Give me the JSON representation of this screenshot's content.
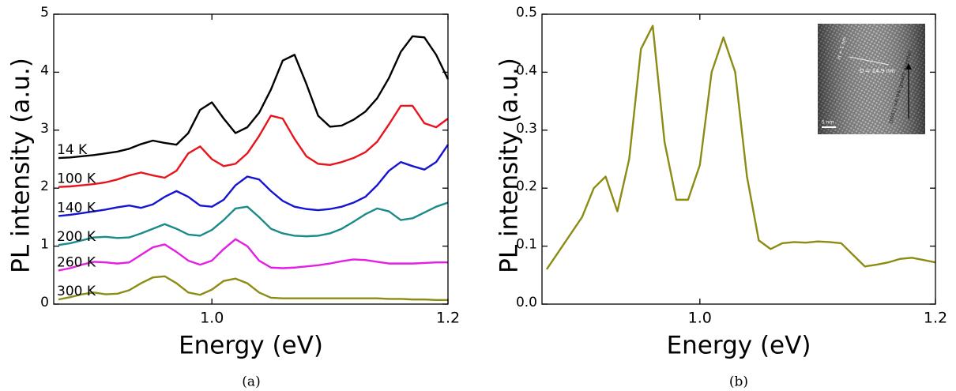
{
  "chart_data": [
    {
      "type": "line",
      "xlabel": "Energy (eV)",
      "ylabel": "PL intensity (a.u.)",
      "x": [
        0.87,
        0.88,
        0.89,
        0.9,
        0.91,
        0.92,
        0.93,
        0.94,
        0.95,
        0.96,
        0.97,
        0.98,
        0.99,
        1.0,
        1.01,
        1.02,
        1.03,
        1.04,
        1.05,
        1.06,
        1.07,
        1.08,
        1.09,
        1.1,
        1.11,
        1.12,
        1.13,
        1.14,
        1.15,
        1.16,
        1.17,
        1.18,
        1.19,
        1.2
      ],
      "xlim": [
        0.866,
        1.2
      ],
      "xticks": [
        {
          "value": 1,
          "label": "1.0"
        },
        1.2
      ],
      "ylim": [
        0,
        5
      ],
      "yticks": [
        0,
        1,
        2,
        3,
        4,
        5
      ],
      "series": [
        {
          "name": "14 K",
          "color": "#000000",
          "values": [
            2.52,
            2.53,
            2.55,
            2.57,
            2.6,
            2.63,
            2.68,
            2.76,
            2.82,
            2.78,
            2.75,
            2.95,
            3.35,
            3.48,
            3.2,
            2.95,
            3.05,
            3.3,
            3.7,
            4.2,
            4.3,
            3.8,
            3.25,
            3.06,
            3.08,
            3.18,
            3.32,
            3.55,
            3.9,
            4.35,
            4.62,
            4.6,
            4.3,
            3.88
          ]
        },
        {
          "name": "100 K",
          "color": "#e8141c",
          "values": [
            2.02,
            2.03,
            2.05,
            2.07,
            2.1,
            2.15,
            2.22,
            2.27,
            2.22,
            2.18,
            2.3,
            2.6,
            2.72,
            2.5,
            2.38,
            2.42,
            2.6,
            2.9,
            3.25,
            3.2,
            2.85,
            2.55,
            2.42,
            2.4,
            2.45,
            2.52,
            2.62,
            2.8,
            3.1,
            3.42,
            3.42,
            3.12,
            3.05,
            3.2
          ]
        },
        {
          "name": "140 K",
          "color": "#1414d2",
          "values": [
            1.52,
            1.54,
            1.57,
            1.6,
            1.63,
            1.67,
            1.7,
            1.66,
            1.72,
            1.85,
            1.95,
            1.85,
            1.7,
            1.68,
            1.8,
            2.05,
            2.2,
            2.15,
            1.95,
            1.78,
            1.68,
            1.64,
            1.62,
            1.64,
            1.68,
            1.75,
            1.85,
            2.05,
            2.3,
            2.45,
            2.38,
            2.32,
            2.45,
            2.75
          ]
        },
        {
          "name": "200 K",
          "color": "#1a8a8a",
          "values": [
            1.02,
            1.05,
            1.1,
            1.15,
            1.16,
            1.14,
            1.15,
            1.22,
            1.3,
            1.38,
            1.3,
            1.2,
            1.18,
            1.28,
            1.45,
            1.65,
            1.68,
            1.5,
            1.3,
            1.22,
            1.18,
            1.17,
            1.18,
            1.22,
            1.3,
            1.42,
            1.55,
            1.65,
            1.6,
            1.45,
            1.48,
            1.58,
            1.68,
            1.75
          ]
        },
        {
          "name": "260 K",
          "color": "#e41ee4",
          "values": [
            0.58,
            0.62,
            0.68,
            0.73,
            0.72,
            0.7,
            0.72,
            0.85,
            0.98,
            1.03,
            0.9,
            0.75,
            0.68,
            0.75,
            0.95,
            1.12,
            1.0,
            0.75,
            0.63,
            0.62,
            0.63,
            0.65,
            0.67,
            0.7,
            0.74,
            0.77,
            0.76,
            0.73,
            0.7,
            0.7,
            0.7,
            0.71,
            0.72,
            0.72
          ]
        },
        {
          "name": "300 K",
          "color": "#8c8c14",
          "values": [
            0.08,
            0.12,
            0.17,
            0.2,
            0.17,
            0.18,
            0.24,
            0.36,
            0.46,
            0.48,
            0.36,
            0.2,
            0.16,
            0.25,
            0.4,
            0.44,
            0.36,
            0.2,
            0.11,
            0.1,
            0.1,
            0.1,
            0.1,
            0.1,
            0.1,
            0.1,
            0.1,
            0.1,
            0.09,
            0.09,
            0.08,
            0.08,
            0.07,
            0.07
          ]
        }
      ]
    },
    {
      "type": "line",
      "xlabel": "Energy (eV)",
      "ylabel": "PL intensity (a.u.)",
      "x": [
        0.87,
        0.88,
        0.89,
        0.9,
        0.91,
        0.92,
        0.93,
        0.94,
        0.95,
        0.96,
        0.97,
        0.98,
        0.99,
        1.0,
        1.01,
        1.02,
        1.03,
        1.04,
        1.05,
        1.06,
        1.07,
        1.08,
        1.09,
        1.1,
        1.11,
        1.12,
        1.13,
        1.14,
        1.15,
        1.16,
        1.17,
        1.18,
        1.19,
        1.2
      ],
      "xlim": [
        0.866,
        1.2
      ],
      "xticks": [
        {
          "value": 1,
          "label": "1.0"
        },
        1.2
      ],
      "ylim": [
        0,
        0.5
      ],
      "yticks": [
        {
          "value": 0,
          "label": "0.0"
        },
        0.1,
        0.2,
        0.3,
        0.4,
        0.5
      ],
      "series": [
        {
          "color": "#8c8c14",
          "values": [
            0.06,
            0.09,
            0.12,
            0.15,
            0.2,
            0.22,
            0.16,
            0.25,
            0.44,
            0.48,
            0.28,
            0.18,
            0.18,
            0.24,
            0.4,
            0.46,
            0.4,
            0.22,
            0.11,
            0.095,
            0.105,
            0.107,
            0.106,
            0.108,
            0.107,
            0.105,
            0.085,
            0.065,
            0.068,
            0.072,
            0.078,
            0.08,
            0.076,
            0.072
          ]
        }
      ],
      "annotations": [
        "H = 1 nm",
        "D = 14.9 nm",
        "[0001] InN NW growth direction",
        "5 nm"
      ]
    }
  ],
  "captions": [
    "(a)",
    "(b)"
  ]
}
